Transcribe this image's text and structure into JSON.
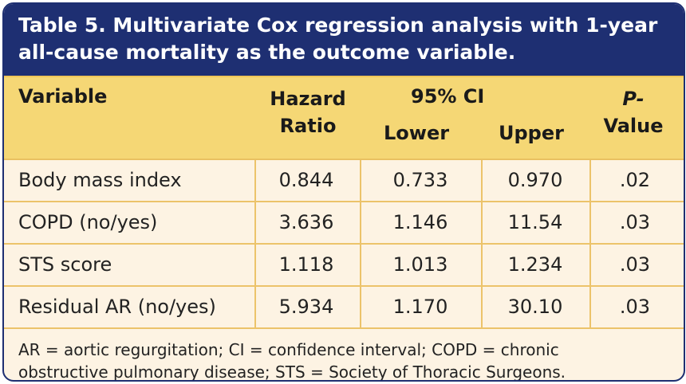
{
  "title": {
    "line1": "Table 5. Multivariate Cox regression analysis with 1-year",
    "line2": "all-cause mortality as the outcome variable."
  },
  "header": {
    "variable": "Variable",
    "hazard_line1": "Hazard",
    "hazard_line2": "Ratio",
    "ci": "95% CI",
    "lower": "Lower",
    "upper": "Upper",
    "p_part1": "P-",
    "p_part2": "Value"
  },
  "rows": [
    {
      "variable": "Body mass index",
      "hr": "0.844",
      "lower": "0.733",
      "upper": "0.970",
      "p": ".02"
    },
    {
      "variable": "COPD (no/yes)",
      "hr": "3.636",
      "lower": "1.146",
      "upper": "11.54",
      "p": ".03"
    },
    {
      "variable": "STS score",
      "hr": "1.118",
      "lower": "1.013",
      "upper": "1.234",
      "p": ".03"
    },
    {
      "variable": "Residual AR (no/yes)",
      "hr": "5.934",
      "lower": "1.170",
      "upper": "30.10",
      "p": ".03"
    }
  ],
  "footnote": {
    "line1": "AR = aortic regurgitation; CI = confidence interval; COPD = chronic",
    "line2": "obstructive pulmonary disease; STS = Society of Thoracic Surgeons."
  },
  "colors": {
    "title_bg": "#1e2f72",
    "header_bg": "#f5d775",
    "body_bg": "#fdf3e3",
    "rule": "#ecc36a"
  }
}
